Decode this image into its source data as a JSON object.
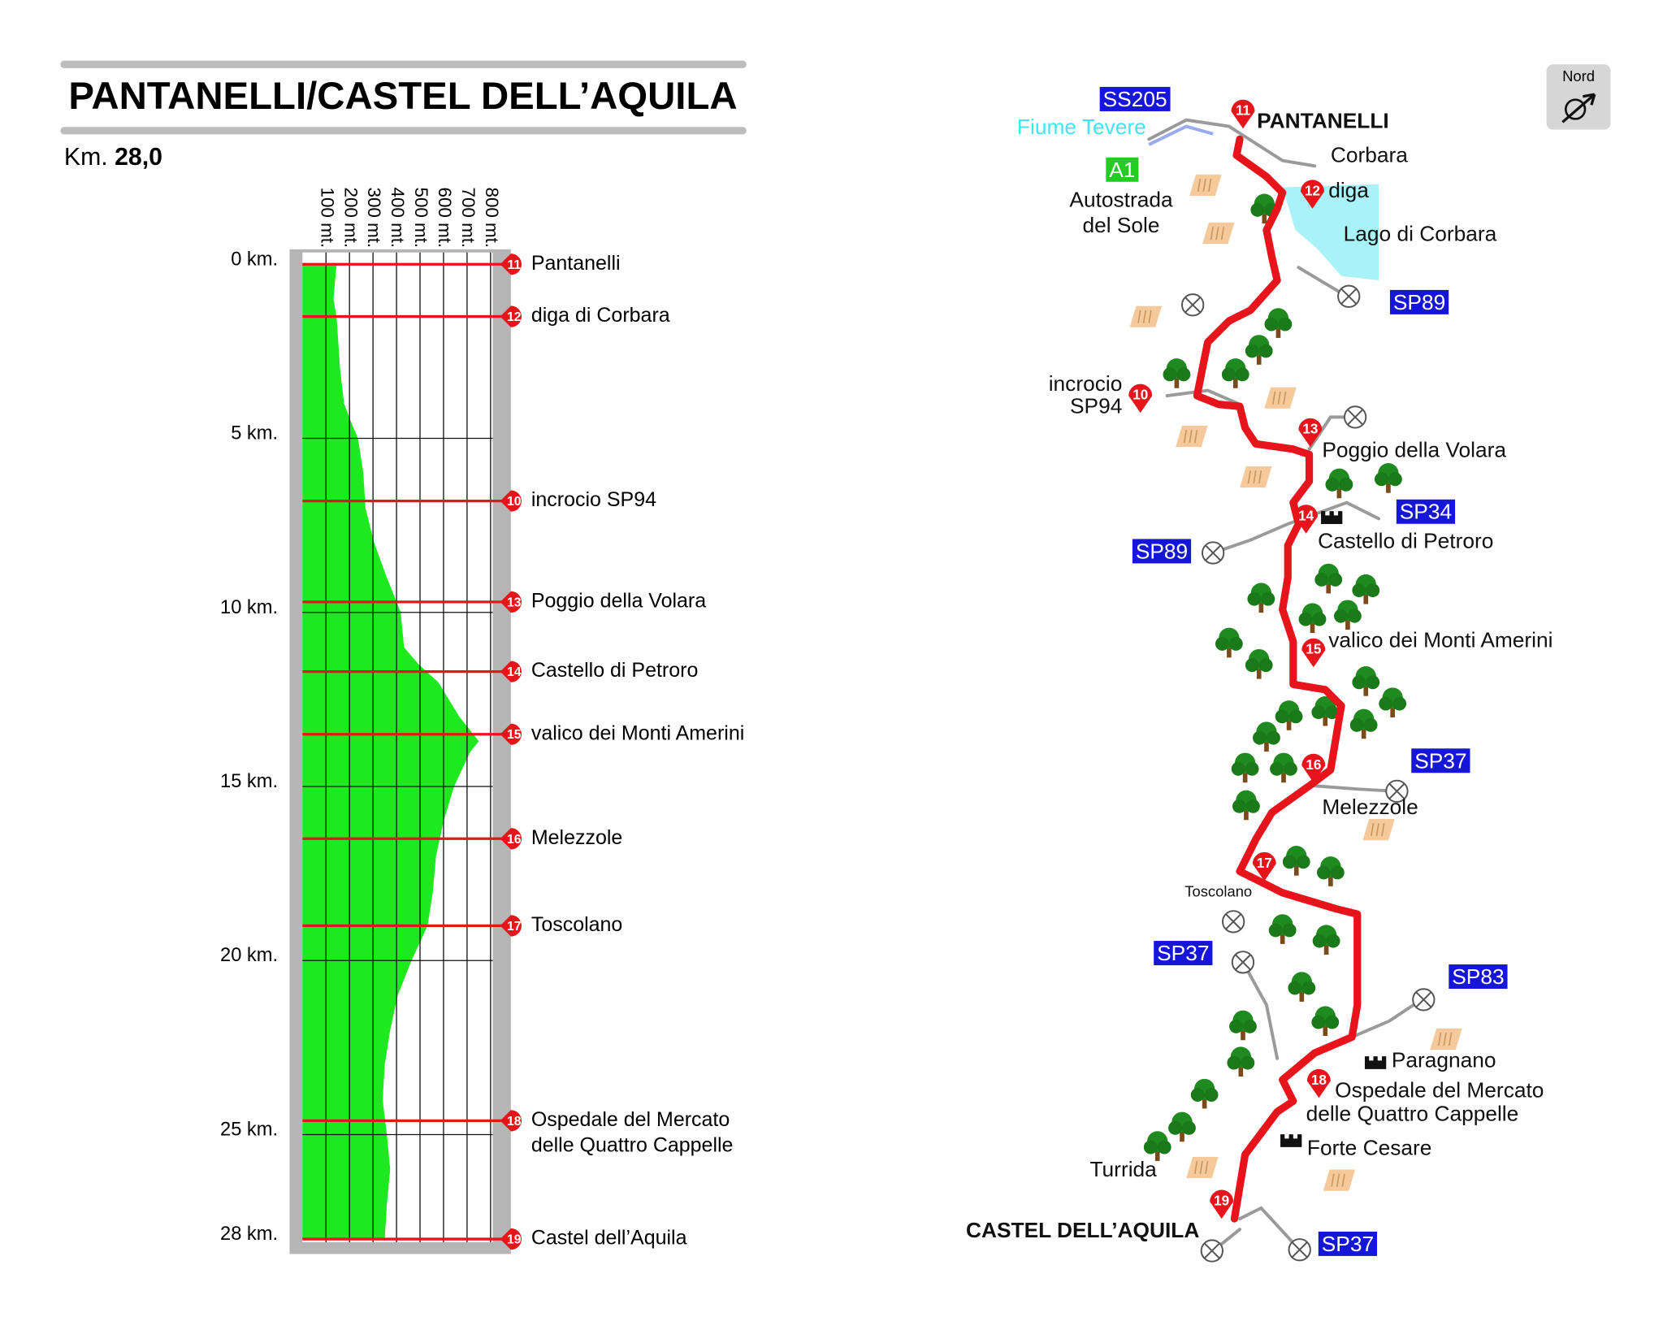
{
  "header": {
    "title": "PANTANELLI/CASTEL DELL’AQUILA",
    "distance_label": "Km.",
    "distance": "28,0"
  },
  "profile": {
    "alt_ticks": [
      {
        "value": 100,
        "label": "100 mt."
      },
      {
        "value": 200,
        "label": "200 mt."
      },
      {
        "value": 300,
        "label": "300 mt."
      },
      {
        "value": 400,
        "label": "400 mt."
      },
      {
        "value": 500,
        "label": "500 mt."
      },
      {
        "value": 600,
        "label": "600 mt."
      },
      {
        "value": 700,
        "label": "700 mt."
      },
      {
        "value": 800,
        "label": "800 mt."
      }
    ],
    "alt_lim": [
      0,
      800
    ],
    "km_lim": [
      0,
      28
    ],
    "km_ticks": [
      {
        "value": 0,
        "label": "0 km."
      },
      {
        "value": 5,
        "label": "5 km."
      },
      {
        "value": 10,
        "label": "10 km."
      },
      {
        "value": 15,
        "label": "15 km."
      },
      {
        "value": 20,
        "label": "20 km."
      },
      {
        "value": 25,
        "label": "25 km."
      },
      {
        "value": 28,
        "label": "28 km."
      }
    ],
    "km": [
      0,
      1,
      1.5,
      3,
      4,
      4.5,
      5,
      6,
      7,
      8,
      9,
      10,
      11,
      11.5,
      12,
      13,
      13.7,
      14,
      15,
      16,
      17,
      18,
      19,
      20,
      21,
      22,
      23,
      24,
      25,
      26,
      27,
      28
    ],
    "altitude": [
      145,
      132,
      145,
      160,
      177,
      205,
      236,
      259,
      268,
      305,
      359,
      418,
      432,
      495,
      577,
      668,
      750,
      714,
      645,
      600,
      568,
      555,
      532,
      464,
      405,
      373,
      350,
      341,
      359,
      373,
      359,
      350
    ],
    "waypoints": [
      {
        "number": "11",
        "km": 0,
        "name": [
          "Pantanelli"
        ]
      },
      {
        "number": "12",
        "km": 1.5,
        "name": [
          "diga di Corbara"
        ]
      },
      {
        "number": "10",
        "km": 6.8,
        "name": [
          "incrocio SP94"
        ]
      },
      {
        "number": "13",
        "km": 9.7,
        "name": [
          "Poggio della Volara"
        ]
      },
      {
        "number": "14",
        "km": 11.7,
        "name": [
          "Castello di Petroro"
        ]
      },
      {
        "number": "15",
        "km": 13.5,
        "name": [
          "valico dei Monti Amerini"
        ]
      },
      {
        "number": "16",
        "km": 16.5,
        "name": [
          "Melezzole"
        ]
      },
      {
        "number": "17",
        "km": 19.0,
        "name": [
          "Toscolano"
        ]
      },
      {
        "number": "18",
        "km": 24.6,
        "name": [
          "Ospedale del Mercato",
          "delle Quattro Cappelle"
        ]
      },
      {
        "number": "19",
        "km": 28,
        "name": [
          "Castel dell’Aquila"
        ]
      }
    ]
  },
  "map": {
    "north": "Nord",
    "labels": [
      [
        "SS205"
      ],
      [
        "Fiume Tevere"
      ],
      [
        "A1"
      ],
      [
        "Autostrada",
        "del Sole"
      ],
      [
        "PANTANELLI"
      ],
      [
        "Corbara"
      ],
      [
        "diga"
      ],
      [
        "Lago di Corbara"
      ],
      [
        "SP89"
      ],
      [
        "incrocio",
        "SP94"
      ],
      [
        "Poggio della Volara"
      ],
      [
        "SP34"
      ],
      [
        "Castello di Petroro"
      ],
      [
        "SP89"
      ],
      [
        "valico dei Monti Amerini"
      ],
      [
        "SP37"
      ],
      [
        "Melezzole"
      ],
      [
        "Toscolano"
      ],
      [
        "SP37"
      ],
      [
        "SP83"
      ],
      [
        "Paragnano"
      ],
      [
        "Ospedale del Mercato",
        "delle Quattro Cappelle"
      ],
      [
        "Forte Cesare"
      ],
      [
        "Turrida"
      ],
      [
        "CASTEL DELL’AQUILA"
      ],
      [
        "SP37"
      ]
    ]
  }
}
